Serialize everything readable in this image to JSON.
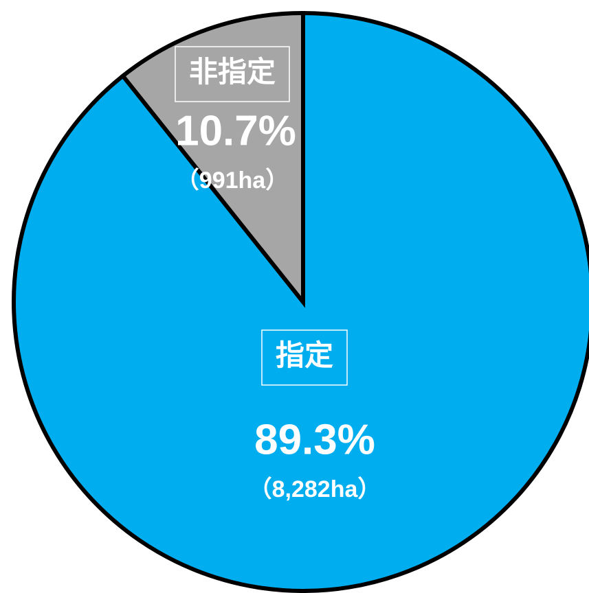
{
  "chart_data": {
    "type": "pie",
    "categories": [
      "指定",
      "非指定"
    ],
    "values": [
      89.3,
      10.7
    ],
    "value_labels": [
      "89.3%",
      "10.7%"
    ],
    "areas": [
      8282,
      991
    ],
    "area_labels": [
      "（8,282ha）",
      "（991ha）"
    ],
    "colors": [
      "#00aeef",
      "#a6a6a6"
    ]
  }
}
